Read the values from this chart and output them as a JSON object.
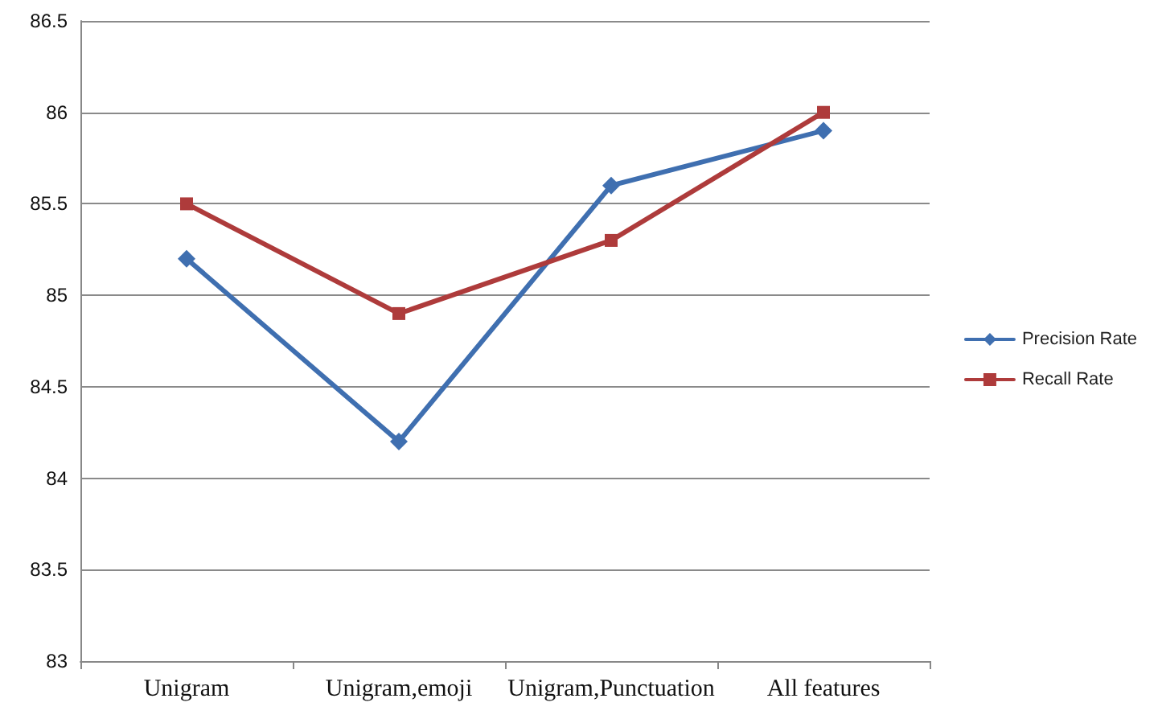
{
  "chart_data": {
    "type": "line",
    "categories": [
      "Unigram",
      "Unigram,emoji",
      "Unigram,Punctuation",
      "All features"
    ],
    "series": [
      {
        "name": "Precision Rate",
        "color": "#3f6fb0",
        "marker": "diamond",
        "values": [
          85.2,
          84.2,
          85.6,
          85.9
        ]
      },
      {
        "name": "Recall Rate",
        "color": "#ae3b3b",
        "marker": "square",
        "values": [
          85.5,
          84.9,
          85.3,
          86.0
        ]
      }
    ],
    "ylim": [
      83,
      86.5
    ],
    "yticks": [
      83,
      83.5,
      84,
      84.5,
      85,
      85.5,
      86,
      86.5
    ],
    "grid": "y",
    "legend": "right",
    "line_style": "solid"
  }
}
